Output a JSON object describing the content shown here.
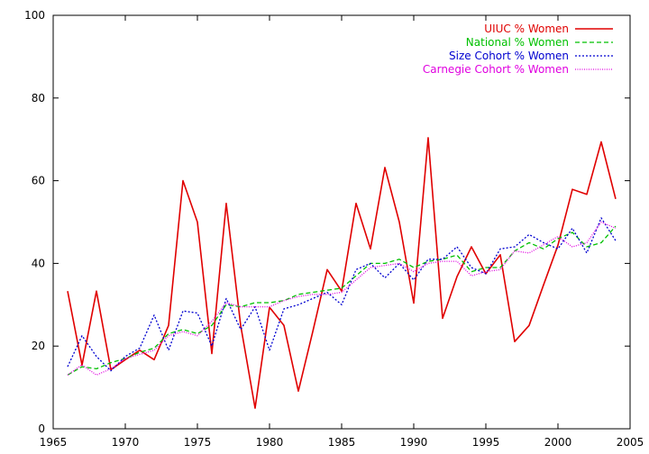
{
  "chart_data": {
    "type": "line",
    "title": "",
    "xlabel": "",
    "ylabel": "",
    "xlim": [
      1965,
      2005
    ],
    "ylim": [
      0,
      100
    ],
    "xticks": [
      1965,
      1970,
      1975,
      1980,
      1985,
      1990,
      1995,
      2000,
      2005
    ],
    "yticks": [
      0,
      20,
      40,
      60,
      80,
      100
    ],
    "grid": false,
    "legend_position": "top-right",
    "x": [
      1966,
      1967,
      1968,
      1969,
      1970,
      1971,
      1972,
      1973,
      1974,
      1975,
      1976,
      1977,
      1978,
      1979,
      1980,
      1981,
      1982,
      1983,
      1984,
      1985,
      1986,
      1987,
      1988,
      1989,
      1990,
      1991,
      1992,
      1993,
      1994,
      1995,
      1996,
      1997,
      1998,
      1999,
      2000,
      2001,
      2002,
      2003,
      2004
    ],
    "series": [
      {
        "name": "UIUC % Women",
        "color": "#e00000",
        "dash": "solid",
        "values": [
          33.3,
          15.4,
          33.3,
          14.3,
          16.7,
          19.0,
          16.7,
          25.0,
          60.0,
          50.0,
          18.2,
          54.5,
          25.0,
          5.0,
          29.4,
          25.0,
          9.1,
          23.5,
          38.5,
          33.3,
          54.5,
          43.5,
          63.2,
          50.0,
          30.4,
          70.4,
          26.7,
          36.8,
          44.0,
          37.5,
          42.1,
          21.1,
          25.0,
          34.8,
          44.4,
          57.9,
          56.7,
          69.4,
          55.6
        ]
      },
      {
        "name": "National % Women",
        "color": "#00c000",
        "dash": "dashed",
        "values": [
          13.0,
          15.0,
          14.5,
          16.0,
          17.0,
          18.5,
          19.5,
          23.0,
          24.0,
          23.0,
          25.0,
          30.0,
          29.5,
          30.5,
          30.5,
          31.0,
          32.5,
          33.0,
          33.5,
          34.0,
          37.0,
          40.0,
          40.0,
          41.0,
          39.0,
          40.5,
          41.0,
          42.0,
          38.0,
          39.0,
          39.0,
          43.0,
          45.0,
          43.5,
          46.0,
          47.5,
          44.0,
          45.0,
          49.0
        ]
      },
      {
        "name": "Size Cohort % Women",
        "color": "#0000d0",
        "dash": "dotted",
        "values": [
          15.0,
          22.5,
          17.5,
          14.0,
          17.5,
          19.5,
          27.5,
          19.0,
          28.5,
          28.0,
          20.0,
          31.5,
          24.0,
          29.5,
          19.0,
          29.0,
          30.0,
          31.5,
          33.0,
          30.0,
          38.5,
          40.0,
          36.5,
          40.0,
          36.0,
          41.0,
          41.0,
          44.0,
          39.0,
          37.5,
          43.5,
          44.0,
          47.0,
          45.0,
          43.5,
          48.5,
          42.5,
          51.0,
          45.5
        ]
      },
      {
        "name": "Carnegie Cohort % Women",
        "color": "#e000e0",
        "dash": "dense-dotted",
        "values": [
          13.0,
          15.5,
          13.0,
          14.5,
          17.0,
          18.0,
          19.0,
          22.5,
          23.5,
          22.5,
          26.0,
          30.5,
          29.5,
          29.5,
          29.5,
          31.0,
          32.0,
          32.5,
          32.5,
          33.0,
          36.0,
          39.0,
          39.5,
          40.0,
          38.0,
          40.0,
          40.5,
          40.5,
          37.0,
          38.0,
          38.5,
          43.0,
          42.5,
          44.5,
          46.5,
          44.0,
          45.0,
          50.0,
          48.5
        ]
      }
    ]
  }
}
